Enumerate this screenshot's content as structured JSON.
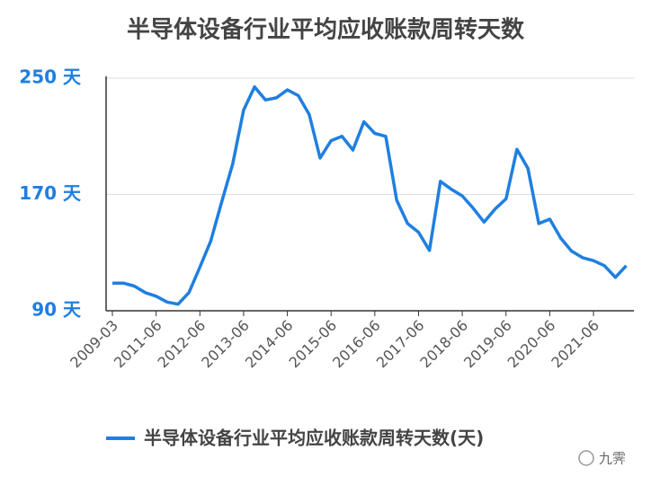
{
  "chart_data": {
    "type": "line",
    "title": "半导体设备行业平均应收账款周转天数",
    "categories": [
      "2009-03",
      null,
      null,
      null,
      "2011-06",
      null,
      null,
      null,
      "2012-06",
      null,
      null,
      null,
      "2013-06",
      null,
      null,
      null,
      "2014-06",
      null,
      null,
      null,
      "2015-06",
      null,
      null,
      null,
      "2016-06",
      null,
      null,
      null,
      "2017-06",
      null,
      null,
      null,
      "2018-06",
      null,
      null,
      null,
      "2019-06",
      null,
      null,
      null,
      "2020-06",
      null,
      null,
      null,
      "2021-06",
      null,
      null,
      null
    ],
    "series": [
      {
        "name": "半导体设备行业平均应收账款周转天数(天)",
        "color": "#1f7fe0",
        "values": [
          109,
          109,
          107,
          102.5,
          100,
          96,
          94.5,
          102.5,
          120,
          138,
          165,
          191,
          228,
          244,
          235,
          236.5,
          242,
          238,
          225,
          195,
          207,
          210,
          200.5,
          220,
          212,
          210,
          166,
          150,
          144,
          131.5,
          179,
          173.5,
          169,
          160.5,
          151,
          160,
          167,
          201,
          188,
          150,
          153,
          140,
          131,
          126.5,
          124.5,
          121,
          113,
          121
        ]
      }
    ],
    "ylim": [
      90,
      250
    ],
    "yticks": [
      {
        "value": 90,
        "label": "90 天"
      },
      {
        "value": 170,
        "label": "170 天"
      },
      {
        "value": 250,
        "label": "250 天"
      }
    ],
    "grid": true,
    "legend": "bottom",
    "watermark": "九霁"
  }
}
